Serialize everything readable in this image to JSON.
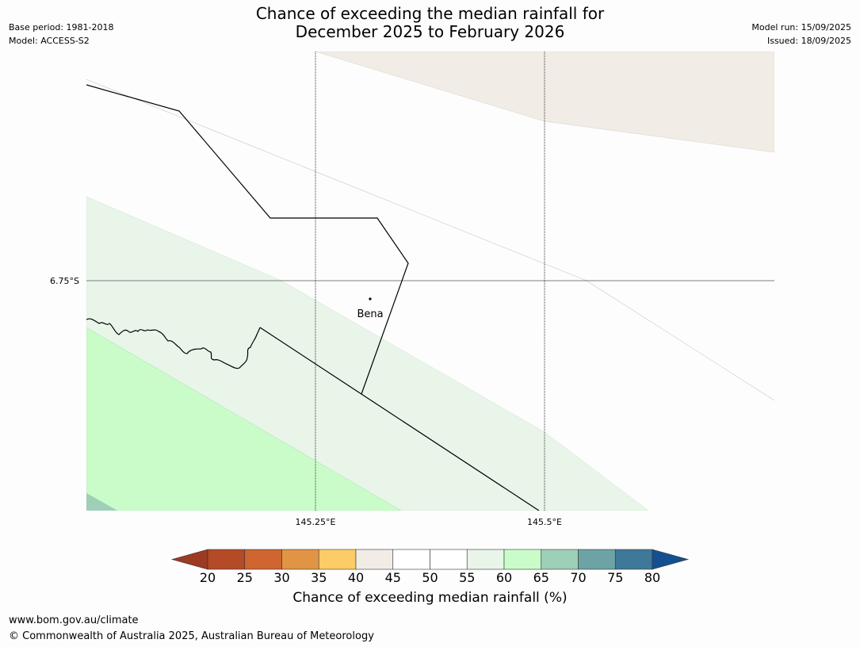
{
  "title": {
    "line1": "Chance of exceeding the median rainfall for",
    "line2": "December 2025 to February 2026"
  },
  "meta": {
    "base_period": "Base period: 1981-2018",
    "model": "Model: ACCESS-S2",
    "model_run": "Model run: 15/09/2025",
    "issued": "Issued: 18/09/2025"
  },
  "map": {
    "latitude_labels": [
      "6.75°S"
    ],
    "longitude_labels": [
      "145.25°E",
      "145.5°E"
    ],
    "place": "Bena",
    "colors": {
      "land_background": "#fdfdfd",
      "band_40_45": "#f1ede6",
      "band_55_60": "#e9f5e9",
      "band_60_65": "#c9fcc9",
      "band_65_70": "#9dcfb9"
    }
  },
  "colorbar": {
    "ticks": [
      "20",
      "25",
      "30",
      "35",
      "40",
      "45",
      "50",
      "55",
      "60",
      "65",
      "70",
      "75",
      "80"
    ],
    "title": "Chance of exceeding median rainfall (%)",
    "colors": [
      "#9c3a23",
      "#b44a26",
      "#cf6530",
      "#e29445",
      "#fdcc66",
      "#f1ede6",
      "#ffffff",
      "#ffffff",
      "#e9f5e9",
      "#c9fcc9",
      "#9dcfb9",
      "#6ea3a6",
      "#3f7899",
      "#145090"
    ]
  },
  "footer": {
    "url": "www.bom.gov.au/climate",
    "copyright": "© Commonwealth of Australia 2025, Australian Bureau of Meteorology"
  }
}
